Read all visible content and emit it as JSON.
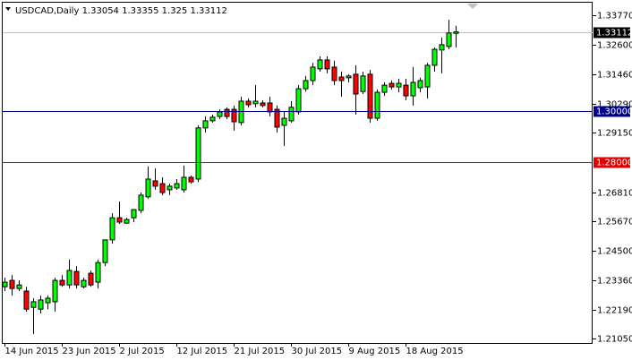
{
  "chart_data": {
    "type": "candlestick",
    "symbol": "USDCAD,Daily",
    "categories": [
      "14 Jun 2015",
      null,
      null,
      null,
      null,
      null,
      null,
      null,
      "23 Jun 2015",
      null,
      null,
      null,
      null,
      null,
      null,
      null,
      "2 Jul 2015",
      null,
      null,
      null,
      null,
      null,
      null,
      null,
      "12 Jul 2015",
      null,
      null,
      null,
      null,
      null,
      null,
      null,
      "21 Jul 2015",
      null,
      null,
      null,
      null,
      null,
      null,
      null,
      "30 Jul 2015",
      null,
      null,
      null,
      null,
      null,
      null,
      null,
      "9 Aug 2015",
      null,
      null,
      null,
      null,
      null,
      null,
      null,
      "18 Aug 2015",
      null,
      null,
      null,
      null,
      null,
      null,
      null
    ],
    "series": {
      "open": [
        1.231,
        1.2335,
        1.2303,
        1.2293,
        1.2229,
        1.2222,
        1.2247,
        1.2251,
        1.2335,
        1.2317,
        1.237,
        1.231,
        1.2363,
        1.2328,
        1.2405,
        1.2494,
        1.2581,
        1.256,
        1.2581,
        1.261,
        1.2663,
        1.2726,
        1.2715,
        1.2691,
        1.2698,
        1.2691,
        1.274,
        1.2733,
        1.2934,
        1.2962,
        1.2979,
        1.3007,
        1.3007,
        1.2955,
        1.3039,
        1.3029,
        1.3032,
        1.3032,
        1.3007,
        1.2944,
        1.2962,
        1.2997,
        1.3088,
        1.312,
        1.3166,
        1.3201,
        1.3173,
        1.3134,
        1.3131,
        1.3145,
        1.3077,
        1.3145,
        1.2972,
        1.3074,
        1.3109,
        1.3095,
        1.3102,
        1.306,
        1.3092,
        1.3095,
        1.318,
        1.324,
        1.3254,
        1.33054
      ],
      "high": [
        1.2346,
        1.2356,
        1.2335,
        1.231,
        1.2265,
        1.2275,
        1.2275,
        1.2346,
        1.2356,
        1.2416,
        1.2391,
        1.2346,
        1.2374,
        1.2416,
        1.2494,
        1.2599,
        1.2645,
        1.2581,
        1.2613,
        1.268,
        1.2782,
        1.2775,
        1.274,
        1.2715,
        1.2733,
        1.2786,
        1.2747,
        1.2944,
        1.2979,
        1.2986,
        1.3007,
        1.3015,
        1.3022,
        1.3057,
        1.305,
        1.3102,
        1.3043,
        1.3057,
        1.3022,
        1.2997,
        1.3039,
        1.3102,
        1.3138,
        1.319,
        1.3215,
        1.3215,
        1.3198,
        1.3155,
        1.3145,
        1.318,
        1.3155,
        1.3162,
        1.3085,
        1.3113,
        1.312,
        1.3127,
        1.3127,
        1.3173,
        1.3131,
        1.319,
        1.325,
        1.3289,
        1.3359,
        1.33355
      ],
      "low": [
        1.2293,
        1.2275,
        1.2293,
        1.2212,
        1.2124,
        1.2205,
        1.2222,
        1.2212,
        1.231,
        1.2303,
        1.2303,
        1.2303,
        1.231,
        1.2303,
        1.2391,
        1.2479,
        1.2557,
        1.2557,
        1.2564,
        1.2599,
        1.2656,
        1.2691,
        1.267,
        1.267,
        1.2691,
        1.268,
        1.2715,
        1.2722,
        1.2916,
        1.2955,
        1.2969,
        1.2969,
        1.2923,
        1.2944,
        1.3015,
        1.3015,
        1.3015,
        1.2979,
        1.2916,
        1.2863,
        1.2955,
        1.2986,
        1.3077,
        1.3102,
        1.3155,
        1.3148,
        1.3102,
        1.3057,
        1.3113,
        1.2986,
        1.3067,
        1.2955,
        1.2962,
        1.306,
        1.3085,
        1.3074,
        1.3043,
        1.3022,
        1.3074,
        1.305,
        1.3155,
        1.3148,
        1.3243,
        1.325
      ],
      "close": [
        1.2328,
        1.2303,
        1.2317,
        1.2222,
        1.2251,
        1.2258,
        1.2265,
        1.2335,
        1.2317,
        1.2374,
        1.2317,
        1.2335,
        1.2317,
        1.2405,
        1.2494,
        1.2581,
        1.2564,
        1.2574,
        1.2613,
        1.267,
        1.2733,
        1.2705,
        1.268,
        1.2705,
        1.2715,
        1.274,
        1.2722,
        1.2934,
        1.2962,
        1.2976,
        1.2997,
        1.2979,
        1.2958,
        1.3039,
        1.3025,
        1.3039,
        1.3022,
        1.2997,
        1.2937,
        1.2972,
        1.3015,
        1.3088,
        1.312,
        1.3173,
        1.3201,
        1.3166,
        1.312,
        1.312,
        1.3138,
        1.3067,
        1.3138,
        1.2972,
        1.3074,
        1.3102,
        1.3095,
        1.3109,
        1.306,
        1.3113,
        1.312,
        1.318,
        1.3243,
        1.3261,
        1.3307,
        1.33112
      ]
    },
    "up_color": "#00ff00",
    "down_color": "#ff0000",
    "wick_color": "#000000",
    "ylim": [
      1.2089,
      1.3426
    ],
    "yticks": [
      {
        "value": 1.3377,
        "label": "1.33770"
      },
      {
        "value": 1.326,
        "label": "1.32600"
      },
      {
        "value": 1.3146,
        "label": "1.31460"
      },
      {
        "value": 1.3029,
        "label": "1.30290"
      },
      {
        "value": 1.2915,
        "label": "1.29150"
      },
      {
        "value": 1.2681,
        "label": "1.26810"
      },
      {
        "value": 1.2567,
        "label": "1.25670"
      },
      {
        "value": 1.245,
        "label": "1.24500"
      },
      {
        "value": 1.2336,
        "label": "1.23360"
      },
      {
        "value": 1.2219,
        "label": "1.22190"
      },
      {
        "value": 1.2105,
        "label": "1.21050"
      }
    ],
    "levels": [
      {
        "value": 1.3,
        "label": "1.30000",
        "color": "#00008b"
      },
      {
        "value": 1.28,
        "label": "1.28000",
        "color": "#e00000"
      }
    ],
    "current_price_color": "#c0c0c0"
  }
}
